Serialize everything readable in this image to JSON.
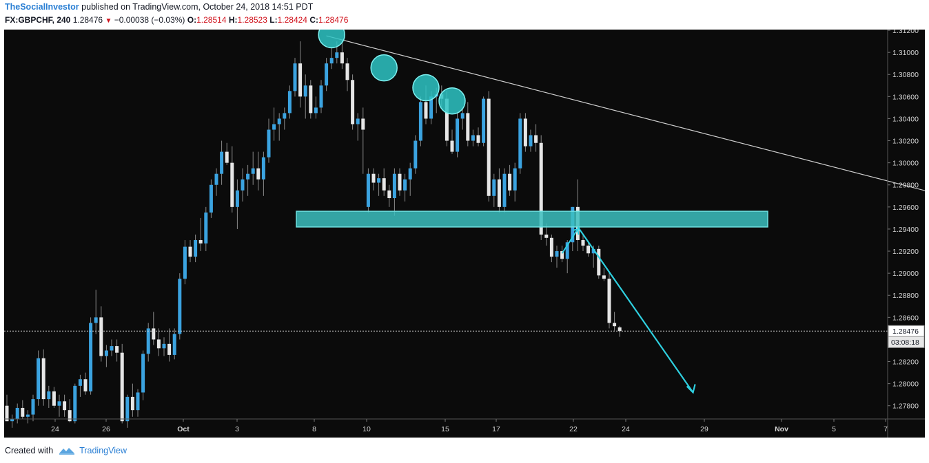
{
  "header": {
    "user": "TheSocialInvestor",
    "published_text": "published on TradingView.com, October 24, 2018 14:51 PDT",
    "symbol": "FX:GBPCHF, 240",
    "last": "1.28476",
    "change": "−0.00038 (−0.03%)",
    "o_label": "O:",
    "o_value": "1.28514",
    "h_label": "H:",
    "h_value": "1.28523",
    "l_label": "L:",
    "l_value": "1.28424",
    "c_label": "C:",
    "c_value": "1.28476"
  },
  "footer": {
    "created_with": "Created with",
    "brand": "TradingView"
  },
  "price_axis": {
    "ticks": [
      "1.31200",
      "1.31000",
      "1.30800",
      "1.30600",
      "1.30400",
      "1.30200",
      "1.30000",
      "1.29800",
      "1.29600",
      "1.29400",
      "1.29200",
      "1.29000",
      "1.28800",
      "1.28600",
      "1.28200",
      "1.28000",
      "1.27800"
    ],
    "last_price_label": "1.28476",
    "countdown": "03:08:18"
  },
  "time_axis": {
    "ticks": [
      "24",
      "26",
      "Oct",
      "3",
      "8",
      "10",
      "15",
      "17",
      "22",
      "24",
      "29",
      "Nov",
      "5",
      "7"
    ]
  },
  "colors": {
    "up": "#3ba3e0",
    "down": "#e6e6e6",
    "zone": "#3cc0c0",
    "circle": "#2ec4c4",
    "arrow": "#2fd0e0",
    "trendline": "#cfcfcf",
    "background": "#0b0b0b"
  },
  "chart_data": {
    "type": "candlestick",
    "symbol": "FX:GBPCHF",
    "interval": "240",
    "y_range": [
      1.2768,
      1.3135
    ],
    "last_price": 1.28476,
    "candles": [
      [
        1.278,
        1.279,
        1.2766,
        1.2766
      ],
      [
        1.2766,
        1.2772,
        1.276,
        1.2768
      ],
      [
        1.2768,
        1.2782,
        1.2764,
        1.2778
      ],
      [
        1.2778,
        1.2785,
        1.2768,
        1.277
      ],
      [
        1.277,
        1.2776,
        1.2764,
        1.2772
      ],
      [
        1.2772,
        1.279,
        1.2766,
        1.2786
      ],
      [
        1.2786,
        1.283,
        1.278,
        1.2823
      ],
      [
        1.2823,
        1.2831,
        1.278,
        1.2786
      ],
      [
        1.2786,
        1.2798,
        1.2778,
        1.2793
      ],
      [
        1.2793,
        1.2797,
        1.2778,
        1.278
      ],
      [
        1.278,
        1.279,
        1.277,
        1.2784
      ],
      [
        1.2784,
        1.279,
        1.277,
        1.2776
      ],
      [
        1.2776,
        1.2786,
        1.2765,
        1.2766
      ],
      [
        1.2766,
        1.28,
        1.2764,
        1.2798
      ],
      [
        1.2798,
        1.2808,
        1.2788,
        1.2804
      ],
      [
        1.2804,
        1.281,
        1.279,
        1.2793
      ],
      [
        1.2793,
        1.286,
        1.279,
        1.2855
      ],
      [
        1.2855,
        1.2885,
        1.2845,
        1.286
      ],
      [
        1.286,
        1.287,
        1.282,
        1.2825
      ],
      [
        1.2825,
        1.2835,
        1.2815,
        1.283
      ],
      [
        1.283,
        1.284,
        1.2825,
        1.2834
      ],
      [
        1.2834,
        1.284,
        1.282,
        1.2828
      ],
      [
        1.2828,
        1.2836,
        1.2764,
        1.2766
      ],
      [
        1.2766,
        1.279,
        1.276,
        1.2788
      ],
      [
        1.2788,
        1.28,
        1.277,
        1.2776
      ],
      [
        1.2776,
        1.2795,
        1.277,
        1.2792
      ],
      [
        1.2792,
        1.283,
        1.2785,
        1.2827
      ],
      [
        1.2827,
        1.2855,
        1.282,
        1.285
      ],
      [
        1.285,
        1.2865,
        1.2835,
        1.284
      ],
      [
        1.284,
        1.285,
        1.2825,
        1.2832
      ],
      [
        1.2832,
        1.2842,
        1.2825,
        1.2836
      ],
      [
        1.2836,
        1.285,
        1.282,
        1.2826
      ],
      [
        1.2826,
        1.285,
        1.2822,
        1.2845
      ],
      [
        1.2845,
        1.29,
        1.284,
        1.2895
      ],
      [
        1.2895,
        1.293,
        1.289,
        1.2924
      ],
      [
        1.2924,
        1.293,
        1.291,
        1.2915
      ],
      [
        1.2915,
        1.2935,
        1.291,
        1.293
      ],
      [
        1.293,
        1.295,
        1.292,
        1.2927
      ],
      [
        1.2927,
        1.296,
        1.292,
        1.2955
      ],
      [
        1.2955,
        1.2985,
        1.295,
        1.298
      ],
      [
        1.298,
        1.2995,
        1.297,
        1.299
      ],
      [
        1.299,
        1.302,
        1.298,
        1.301
      ],
      [
        1.301,
        1.3018,
        1.2998,
        1.3
      ],
      [
        1.3,
        1.3015,
        1.2955,
        1.296
      ],
      [
        1.296,
        1.2985,
        1.294,
        1.2975
      ],
      [
        1.2975,
        1.2995,
        1.2965,
        1.2985
      ],
      [
        1.2985,
        1.2998,
        1.297,
        1.299
      ],
      [
        1.299,
        1.301,
        1.298,
        1.2995
      ],
      [
        1.2995,
        1.301,
        1.2975,
        1.2985
      ],
      [
        1.2985,
        1.301,
        1.297,
        1.3005
      ],
      [
        1.3005,
        1.304,
        1.3,
        1.303
      ],
      [
        1.303,
        1.305,
        1.302,
        1.3035
      ],
      [
        1.3035,
        1.3045,
        1.302,
        1.304
      ],
      [
        1.304,
        1.305,
        1.303,
        1.3045
      ],
      [
        1.3045,
        1.307,
        1.304,
        1.3065
      ],
      [
        1.3065,
        1.3095,
        1.306,
        1.309
      ],
      [
        1.309,
        1.311,
        1.305,
        1.306
      ],
      [
        1.306,
        1.308,
        1.304,
        1.307
      ],
      [
        1.307,
        1.3075,
        1.304,
        1.3045
      ],
      [
        1.3045,
        1.306,
        1.304,
        1.305
      ],
      [
        1.305,
        1.3075,
        1.3045,
        1.307
      ],
      [
        1.307,
        1.3095,
        1.3065,
        1.309
      ],
      [
        1.309,
        1.3105,
        1.3085,
        1.3095
      ],
      [
        1.3095,
        1.311,
        1.309,
        1.31
      ],
      [
        1.31,
        1.3112,
        1.3085,
        1.309
      ],
      [
        1.309,
        1.3095,
        1.3065,
        1.3075
      ],
      [
        1.3075,
        1.308,
        1.303,
        1.3035
      ],
      [
        1.3035,
        1.3045,
        1.302,
        1.304
      ],
      [
        1.304,
        1.305,
        1.299,
        1.303
      ],
      [
        1.296,
        1.2995,
        1.2955,
        1.299
      ],
      [
        1.299,
        1.2995,
        1.2975,
        1.2982
      ],
      [
        1.2982,
        1.299,
        1.297,
        1.2986
      ],
      [
        1.2986,
        1.2995,
        1.297,
        1.2975
      ],
      [
        1.2975,
        1.298,
        1.296,
        1.2968
      ],
      [
        1.2968,
        1.2995,
        1.2952,
        1.299
      ],
      [
        1.299,
        1.2995,
        1.297,
        1.2975
      ],
      [
        1.2975,
        1.299,
        1.2965,
        1.2985
      ],
      [
        1.2985,
        1.3,
        1.297,
        1.2995
      ],
      [
        1.2995,
        1.3025,
        1.299,
        1.302
      ],
      [
        1.302,
        1.306,
        1.3015,
        1.3055
      ],
      [
        1.3055,
        1.307,
        1.3035,
        1.304
      ],
      [
        1.304,
        1.3065,
        1.3035,
        1.306
      ],
      [
        1.306,
        1.3068,
        1.3045,
        1.3062
      ],
      [
        1.3062,
        1.307,
        1.305,
        1.3058
      ],
      [
        1.3058,
        1.3065,
        1.3015,
        1.302
      ],
      [
        1.302,
        1.303,
        1.3008,
        1.301
      ],
      [
        1.301,
        1.3045,
        1.3005,
        1.304
      ],
      [
        1.304,
        1.305,
        1.303,
        1.3045
      ],
      [
        1.3045,
        1.3055,
        1.3015,
        1.302
      ],
      [
        1.302,
        1.303,
        1.3015,
        1.3025
      ],
      [
        1.3025,
        1.3032,
        1.3015,
        1.3018
      ],
      [
        1.3018,
        1.306,
        1.3015,
        1.3058
      ],
      [
        1.3058,
        1.3065,
        1.2965,
        1.297
      ],
      [
        1.297,
        1.299,
        1.296,
        1.2985
      ],
      [
        1.2985,
        1.2995,
        1.2955,
        1.296
      ],
      [
        1.296,
        1.2995,
        1.2955,
        1.299
      ],
      [
        1.299,
        1.2998,
        1.297,
        1.2975
      ],
      [
        1.2975,
        1.3,
        1.2965,
        1.2995
      ],
      [
        1.2995,
        1.3045,
        1.299,
        1.304
      ],
      [
        1.304,
        1.3045,
        1.301,
        1.3015
      ],
      [
        1.3015,
        1.303,
        1.301,
        1.3025
      ],
      [
        1.3025,
        1.3035,
        1.301,
        1.3018
      ],
      [
        1.3018,
        1.3025,
        1.293,
        1.2935
      ],
      [
        1.2935,
        1.2945,
        1.2925,
        1.2932
      ],
      [
        1.2932,
        1.2935,
        1.291,
        1.2915
      ],
      [
        1.2915,
        1.2925,
        1.2905,
        1.292
      ],
      [
        1.292,
        1.2925,
        1.291,
        1.2913
      ],
      [
        1.2913,
        1.293,
        1.29,
        1.2928
      ],
      [
        1.2928,
        1.296,
        1.292,
        1.296
      ],
      [
        1.296,
        1.2985,
        1.292,
        1.293
      ],
      [
        1.293,
        1.2935,
        1.292,
        1.2925
      ],
      [
        1.2925,
        1.2928,
        1.2915,
        1.2918
      ],
      [
        1.2918,
        1.2925,
        1.2905,
        1.2922
      ],
      [
        1.2922,
        1.2925,
        1.2895,
        1.2898
      ],
      [
        1.2898,
        1.2905,
        1.2893,
        1.2895
      ],
      [
        1.2895,
        1.29,
        1.285,
        1.2855
      ],
      [
        1.2855,
        1.2865,
        1.2848,
        1.2852
      ],
      [
        1.2851,
        1.28523,
        1.28424,
        1.28476
      ]
    ],
    "annotations": {
      "resistance_zone": [
        1.2945,
        1.2953
      ],
      "trendline": [
        [
          61,
          1.3115
        ],
        [
          180,
          1.2969
        ]
      ],
      "touch_circles": [
        [
          62,
          1.3116
        ],
        [
          72,
          1.3086
        ],
        [
          80,
          1.3068
        ],
        [
          85,
          1.3056
        ]
      ],
      "projection_arrow": [
        [
          109,
          1.2942
        ],
        [
          131,
          1.2792
        ]
      ],
      "small_arrow": [
        [
          106,
          1.2918
        ],
        [
          109,
          1.294
        ]
      ]
    }
  }
}
